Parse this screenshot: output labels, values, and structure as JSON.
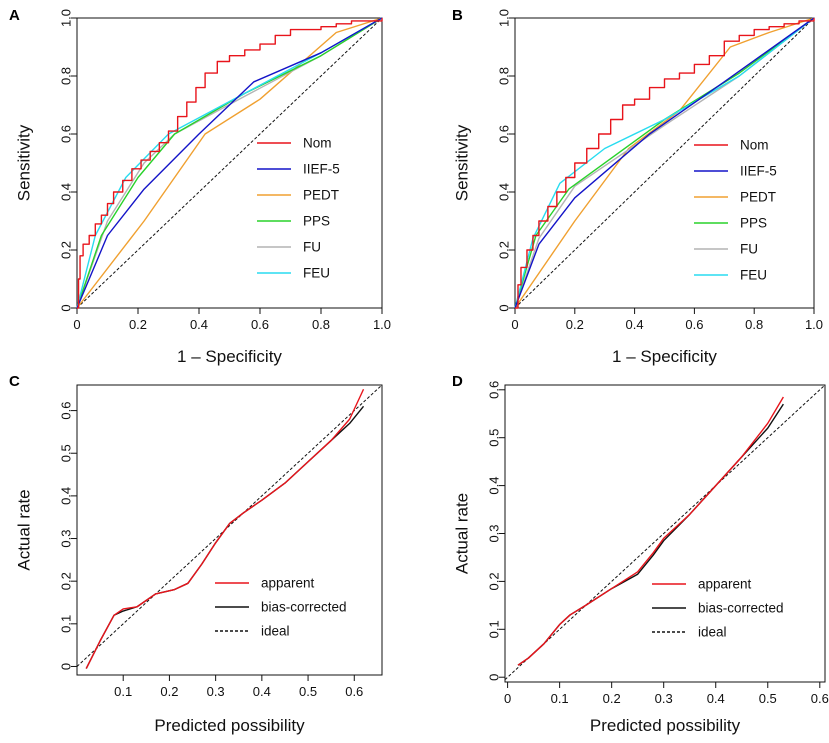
{
  "colors": {
    "Nom": "#e8141b",
    "IIEF-5": "#1414c8",
    "PEDT": "#f0a030",
    "PPS": "#28d22a",
    "FU": "#b4b4b4",
    "FEU": "#28dcf0",
    "apparent": "#e8141b",
    "bias-corrected": "#111111",
    "ideal": "#111111"
  },
  "chart_data": [
    {
      "panel": "A",
      "type": "line",
      "xlabel": "1 – Specificity",
      "ylabel": "Sensitivity",
      "xlim": [
        0,
        1
      ],
      "ylim": [
        0,
        1
      ],
      "xticks": [
        "0",
        "0.2",
        "0.4",
        "0.6",
        "0.8",
        "1.0"
      ],
      "yticks": [
        "0",
        "0.2",
        "0.4",
        "0.6",
        "0.8",
        "1.0"
      ],
      "legend": [
        "Nom",
        "IIEF-5",
        "PEDT",
        "PPS",
        "FU",
        "FEU"
      ],
      "series": [
        {
          "name": "Nom",
          "points": [
            [
              0,
              0
            ],
            [
              0.005,
              0.1
            ],
            [
              0.01,
              0.18
            ],
            [
              0.02,
              0.22
            ],
            [
              0.04,
              0.25
            ],
            [
              0.06,
              0.29
            ],
            [
              0.08,
              0.32
            ],
            [
              0.1,
              0.36
            ],
            [
              0.12,
              0.4
            ],
            [
              0.15,
              0.44
            ],
            [
              0.18,
              0.48
            ],
            [
              0.21,
              0.51
            ],
            [
              0.24,
              0.54
            ],
            [
              0.27,
              0.57
            ],
            [
              0.3,
              0.61
            ],
            [
              0.33,
              0.66
            ],
            [
              0.36,
              0.71
            ],
            [
              0.39,
              0.76
            ],
            [
              0.42,
              0.81
            ],
            [
              0.46,
              0.85
            ],
            [
              0.5,
              0.87
            ],
            [
              0.55,
              0.89
            ],
            [
              0.6,
              0.91
            ],
            [
              0.65,
              0.94
            ],
            [
              0.7,
              0.96
            ],
            [
              0.75,
              0.96
            ],
            [
              0.8,
              0.97
            ],
            [
              0.85,
              0.98
            ],
            [
              0.9,
              0.99
            ],
            [
              0.95,
              0.99
            ],
            [
              1,
              1
            ]
          ]
        },
        {
          "name": "IIEF-5",
          "points": [
            [
              0,
              0
            ],
            [
              0.1,
              0.25
            ],
            [
              0.22,
              0.41
            ],
            [
              0.4,
              0.6
            ],
            [
              0.58,
              0.78
            ],
            [
              0.8,
              0.88
            ],
            [
              1,
              1
            ]
          ]
        },
        {
          "name": "PEDT",
          "points": [
            [
              0,
              0
            ],
            [
              0.22,
              0.3
            ],
            [
              0.42,
              0.6
            ],
            [
              0.6,
              0.72
            ],
            [
              0.85,
              0.95
            ],
            [
              1,
              1
            ]
          ]
        },
        {
          "name": "PPS",
          "points": [
            [
              0,
              0
            ],
            [
              0.08,
              0.25
            ],
            [
              0.2,
              0.45
            ],
            [
              0.32,
              0.6
            ],
            [
              0.55,
              0.74
            ],
            [
              0.8,
              0.87
            ],
            [
              1,
              1
            ]
          ]
        },
        {
          "name": "FU",
          "points": [
            [
              0,
              0
            ],
            [
              0.1,
              0.3
            ],
            [
              0.22,
              0.5
            ],
            [
              0.32,
              0.6
            ],
            [
              0.55,
              0.73
            ],
            [
              0.8,
              0.87
            ],
            [
              1,
              1
            ]
          ]
        },
        {
          "name": "FEU",
          "points": [
            [
              0,
              0
            ],
            [
              0.06,
              0.25
            ],
            [
              0.16,
              0.45
            ],
            [
              0.3,
              0.6
            ],
            [
              0.55,
              0.74
            ],
            [
              0.8,
              0.88
            ],
            [
              1,
              1
            ]
          ]
        }
      ],
      "reference": "diagonal"
    },
    {
      "panel": "B",
      "type": "line",
      "xlabel": "1 – Specificity",
      "ylabel": "Sensitivity",
      "xlim": [
        0,
        1
      ],
      "ylim": [
        0,
        1
      ],
      "xticks": [
        "0",
        "0.2",
        "0.4",
        "0.6",
        "0.8",
        "1.0"
      ],
      "yticks": [
        "0",
        "0.2",
        "0.4",
        "0.6",
        "0.8",
        "1.0"
      ],
      "legend": [
        "Nom",
        "IIEF-5",
        "PEDT",
        "PPS",
        "FU",
        "FEU"
      ],
      "series": [
        {
          "name": "Nom",
          "points": [
            [
              0,
              0
            ],
            [
              0.01,
              0.08
            ],
            [
              0.02,
              0.14
            ],
            [
              0.04,
              0.2
            ],
            [
              0.06,
              0.25
            ],
            [
              0.08,
              0.3
            ],
            [
              0.11,
              0.35
            ],
            [
              0.14,
              0.4
            ],
            [
              0.17,
              0.45
            ],
            [
              0.2,
              0.5
            ],
            [
              0.24,
              0.55
            ],
            [
              0.28,
              0.6
            ],
            [
              0.32,
              0.65
            ],
            [
              0.36,
              0.7
            ],
            [
              0.4,
              0.72
            ],
            [
              0.45,
              0.76
            ],
            [
              0.5,
              0.79
            ],
            [
              0.55,
              0.81
            ],
            [
              0.6,
              0.84
            ],
            [
              0.65,
              0.87
            ],
            [
              0.7,
              0.92
            ],
            [
              0.75,
              0.94
            ],
            [
              0.8,
              0.96
            ],
            [
              0.85,
              0.97
            ],
            [
              0.9,
              0.98
            ],
            [
              0.95,
              0.99
            ],
            [
              1,
              1
            ]
          ]
        },
        {
          "name": "IIEF-5",
          "points": [
            [
              0,
              0
            ],
            [
              0.08,
              0.22
            ],
            [
              0.2,
              0.38
            ],
            [
              0.45,
              0.6
            ],
            [
              0.7,
              0.78
            ],
            [
              1,
              1
            ]
          ]
        },
        {
          "name": "PEDT",
          "points": [
            [
              0,
              0
            ],
            [
              0.2,
              0.3
            ],
            [
              0.38,
              0.55
            ],
            [
              0.55,
              0.68
            ],
            [
              0.72,
              0.9
            ],
            [
              0.85,
              0.95
            ],
            [
              1,
              1
            ]
          ]
        },
        {
          "name": "PPS",
          "points": [
            [
              0,
              0
            ],
            [
              0.07,
              0.25
            ],
            [
              0.18,
              0.41
            ],
            [
              0.5,
              0.65
            ],
            [
              0.75,
              0.81
            ],
            [
              1,
              1
            ]
          ]
        },
        {
          "name": "FU",
          "points": [
            [
              0,
              0
            ],
            [
              0.08,
              0.24
            ],
            [
              0.2,
              0.42
            ],
            [
              0.5,
              0.63
            ],
            [
              0.75,
              0.8
            ],
            [
              1,
              1
            ]
          ]
        },
        {
          "name": "FEU",
          "points": [
            [
              0,
              0
            ],
            [
              0.06,
              0.24
            ],
            [
              0.15,
              0.43
            ],
            [
              0.3,
              0.55
            ],
            [
              0.5,
              0.65
            ],
            [
              0.75,
              0.8
            ],
            [
              1,
              1
            ]
          ]
        }
      ],
      "reference": "diagonal"
    },
    {
      "panel": "C",
      "type": "line",
      "xlabel": "Predicted possibility",
      "ylabel": "Actual rate",
      "xlim": [
        0.0,
        0.66
      ],
      "ylim": [
        -0.02,
        0.66
      ],
      "xticks": [
        "0.1",
        "0.2",
        "0.3",
        "0.4",
        "0.5",
        "0.6"
      ],
      "yticks": [
        "0",
        "0.1",
        "0.2",
        "0.3",
        "0.4",
        "0.5",
        "0.6"
      ],
      "legend": [
        "apparent",
        "bias-corrected",
        "ideal"
      ],
      "series": [
        {
          "name": "apparent",
          "points": [
            [
              0.02,
              -0.005
            ],
            [
              0.05,
              0.06
            ],
            [
              0.08,
              0.12
            ],
            [
              0.1,
              0.135
            ],
            [
              0.13,
              0.14
            ],
            [
              0.17,
              0.17
            ],
            [
              0.21,
              0.18
            ],
            [
              0.24,
              0.195
            ],
            [
              0.27,
              0.24
            ],
            [
              0.3,
              0.29
            ],
            [
              0.33,
              0.335
            ],
            [
              0.36,
              0.36
            ],
            [
              0.4,
              0.39
            ],
            [
              0.45,
              0.43
            ],
            [
              0.5,
              0.48
            ],
            [
              0.55,
              0.53
            ],
            [
              0.59,
              0.58
            ],
            [
              0.62,
              0.65
            ]
          ]
        },
        {
          "name": "bias-corrected",
          "points": [
            [
              0.02,
              -0.005
            ],
            [
              0.05,
              0.06
            ],
            [
              0.08,
              0.12
            ],
            [
              0.1,
              0.13
            ],
            [
              0.13,
              0.14
            ],
            [
              0.17,
              0.17
            ],
            [
              0.21,
              0.18
            ],
            [
              0.24,
              0.195
            ],
            [
              0.27,
              0.24
            ],
            [
              0.3,
              0.29
            ],
            [
              0.33,
              0.335
            ],
            [
              0.36,
              0.36
            ],
            [
              0.4,
              0.39
            ],
            [
              0.45,
              0.43
            ],
            [
              0.5,
              0.48
            ],
            [
              0.55,
              0.53
            ],
            [
              0.59,
              0.57
            ],
            [
              0.62,
              0.61
            ]
          ]
        }
      ],
      "reference": "diagonal"
    },
    {
      "panel": "D",
      "type": "line",
      "xlabel": "Predicted possibility",
      "ylabel": "Actual rate",
      "xlim": [
        0.0,
        0.6
      ],
      "ylim": [
        0.0,
        0.6
      ],
      "xticks": [
        "0",
        "0.1",
        "0.2",
        "0.3",
        "0.4",
        "0.5",
        "0.6"
      ],
      "yticks": [
        "0",
        "0.1",
        "0.2",
        "0.3",
        "0.4",
        "0.5",
        "0.6"
      ],
      "legend": [
        "apparent",
        "bias-corrected",
        "ideal"
      ],
      "series": [
        {
          "name": "apparent",
          "points": [
            [
              0.02,
              0.025
            ],
            [
              0.04,
              0.04
            ],
            [
              0.07,
              0.07
            ],
            [
              0.1,
              0.11
            ],
            [
              0.12,
              0.13
            ],
            [
              0.15,
              0.15
            ],
            [
              0.2,
              0.185
            ],
            [
              0.25,
              0.22
            ],
            [
              0.28,
              0.26
            ],
            [
              0.3,
              0.29
            ],
            [
              0.35,
              0.34
            ],
            [
              0.4,
              0.4
            ],
            [
              0.45,
              0.46
            ],
            [
              0.5,
              0.53
            ],
            [
              0.53,
              0.585
            ]
          ]
        },
        {
          "name": "bias-corrected",
          "points": [
            [
              0.02,
              0.025
            ],
            [
              0.04,
              0.04
            ],
            [
              0.07,
              0.07
            ],
            [
              0.1,
              0.11
            ],
            [
              0.12,
              0.13
            ],
            [
              0.15,
              0.15
            ],
            [
              0.2,
              0.185
            ],
            [
              0.25,
              0.215
            ],
            [
              0.28,
              0.255
            ],
            [
              0.3,
              0.285
            ],
            [
              0.35,
              0.34
            ],
            [
              0.4,
              0.4
            ],
            [
              0.45,
              0.46
            ],
            [
              0.5,
              0.52
            ],
            [
              0.53,
              0.57
            ]
          ]
        }
      ],
      "reference": "diagonal"
    }
  ]
}
